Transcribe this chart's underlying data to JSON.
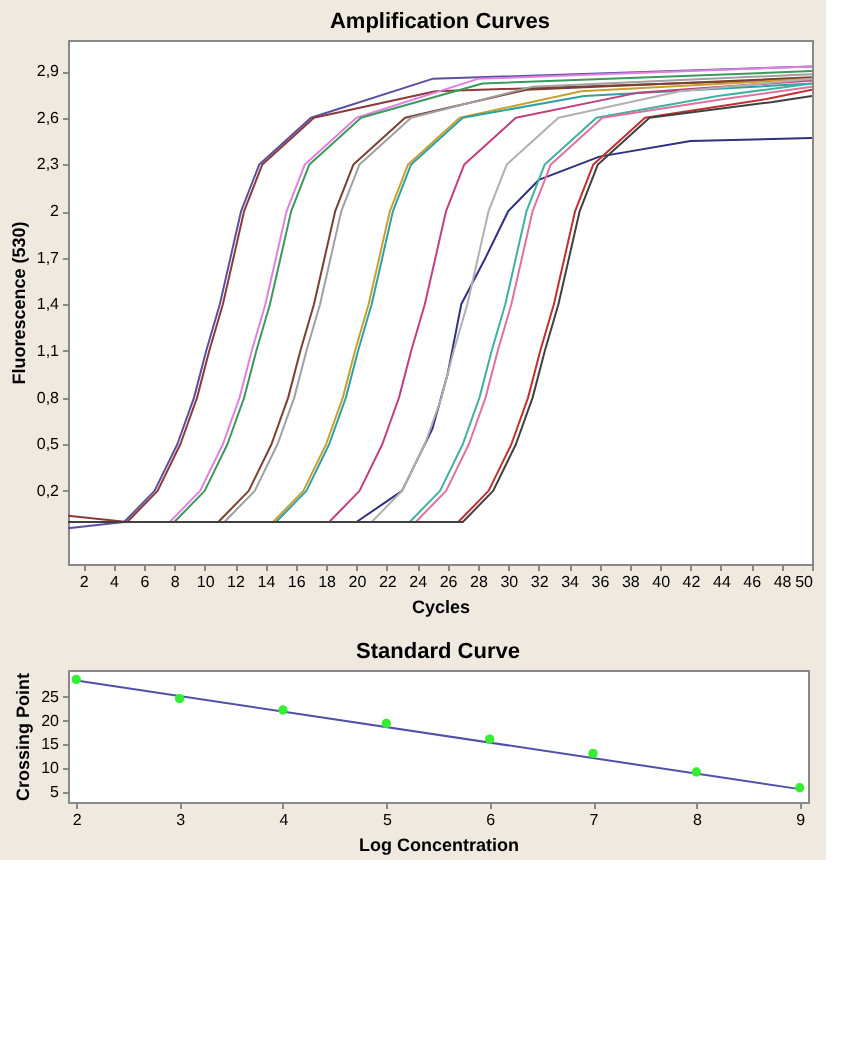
{
  "chart_data": [
    {
      "type": "line",
      "title": "Amplification Curves",
      "xlabel": "Cycles",
      "ylabel": "Fluorescence (530)",
      "grid": false,
      "legend": false,
      "xlim": [
        1,
        50
      ],
      "ylim": [
        -0.27,
        3.1
      ],
      "xticks": [
        2,
        4,
        6,
        8,
        10,
        12,
        14,
        16,
        18,
        20,
        22,
        24,
        26,
        28,
        30,
        32,
        34,
        36,
        38,
        40,
        42,
        44,
        46,
        48,
        50
      ],
      "yticks": [
        {
          "value": 0.2,
          "label": "0,2"
        },
        {
          "value": 0.5,
          "label": "0,5"
        },
        {
          "value": 0.8,
          "label": "0,8"
        },
        {
          "value": 1.1,
          "label": "1,1"
        },
        {
          "value": 1.4,
          "label": "1,4"
        },
        {
          "value": 1.7,
          "label": "1,7"
        },
        2,
        {
          "value": 2.3,
          "label": "2,3"
        },
        {
          "value": 2.6,
          "label": "2,6"
        },
        {
          "value": 2.9,
          "label": "2,9"
        }
      ],
      "series": [
        {
          "color": "#5a4fa0",
          "x": [
            1,
            4.7,
            6.7,
            8.2,
            9.3,
            10.1,
            11,
            11.7,
            12.4,
            13.6,
            17,
            25,
            50
          ],
          "values": [
            -0.04,
            0,
            0.2,
            0.5,
            0.8,
            1.1,
            1.4,
            1.7,
            2.0,
            2.3,
            2.6,
            2.85,
            2.93
          ]
        },
        {
          "color": "#8b3a3a",
          "x": [
            1,
            4.9,
            6.9,
            8.4,
            9.5,
            10.3,
            11.2,
            11.9,
            12.6,
            13.8,
            17.2,
            25.2,
            50
          ],
          "values": [
            0.04,
            0,
            0.2,
            0.5,
            0.8,
            1.1,
            1.4,
            1.7,
            2.0,
            2.3,
            2.6,
            2.77,
            2.85
          ]
        },
        {
          "color": "#e080e0",
          "x": [
            1,
            7.7,
            9.7,
            11.2,
            12.3,
            13.1,
            14,
            14.7,
            15.4,
            16.6,
            20,
            28,
            50
          ],
          "values": [
            0,
            0,
            0.2,
            0.5,
            0.8,
            1.1,
            1.4,
            1.7,
            2.0,
            2.3,
            2.6,
            2.85,
            2.93
          ]
        },
        {
          "color": "#3a9a5a",
          "x": [
            1,
            8,
            10,
            11.5,
            12.6,
            13.4,
            14.3,
            15,
            15.7,
            16.9,
            20.3,
            28.3,
            50
          ],
          "values": [
            0,
            0,
            0.2,
            0.5,
            0.8,
            1.1,
            1.4,
            1.7,
            2.0,
            2.3,
            2.6,
            2.82,
            2.9
          ]
        },
        {
          "color": "#7a4030",
          "x": [
            1,
            10.9,
            12.9,
            14.4,
            15.5,
            16.3,
            17.2,
            17.9,
            18.6,
            19.8,
            23.2,
            31.2,
            50
          ],
          "values": [
            0,
            0,
            0.2,
            0.5,
            0.8,
            1.1,
            1.4,
            1.7,
            2.0,
            2.3,
            2.6,
            2.78,
            2.86
          ]
        },
        {
          "color": "#a0a0a0",
          "x": [
            1,
            11.3,
            13.3,
            14.8,
            15.9,
            16.7,
            17.6,
            18.3,
            19,
            20.2,
            23.6,
            31.6,
            50
          ],
          "values": [
            0,
            0,
            0.2,
            0.5,
            0.8,
            1.1,
            1.4,
            1.7,
            2.0,
            2.3,
            2.6,
            2.8,
            2.88
          ]
        },
        {
          "color": "#c8a030",
          "x": [
            1,
            14.5,
            16.5,
            18,
            19.1,
            19.9,
            20.8,
            21.5,
            22.2,
            23.4,
            26.8,
            34.8,
            50
          ],
          "values": [
            0,
            0,
            0.2,
            0.5,
            0.8,
            1.1,
            1.4,
            1.7,
            2.0,
            2.3,
            2.6,
            2.77,
            2.85
          ]
        },
        {
          "color": "#30a0a0",
          "x": [
            1,
            14.7,
            16.7,
            18.2,
            19.3,
            20.1,
            21,
            21.7,
            22.4,
            23.6,
            27,
            35,
            50
          ],
          "values": [
            0,
            0,
            0.2,
            0.5,
            0.8,
            1.1,
            1.4,
            1.7,
            2.0,
            2.3,
            2.6,
            2.74,
            2.82
          ]
        },
        {
          "color": "#c04080",
          "x": [
            1,
            18.2,
            20.2,
            21.7,
            22.8,
            23.6,
            24.5,
            25.2,
            25.9,
            27.1,
            30.5,
            38.5,
            50
          ],
          "values": [
            0,
            0,
            0.2,
            0.5,
            0.8,
            1.1,
            1.4,
            1.7,
            2.0,
            2.3,
            2.6,
            2.76,
            2.84
          ]
        },
        {
          "color": "#303080",
          "x": [
            1,
            20,
            23,
            25,
            26,
            26.9,
            28.5,
            30,
            32,
            36,
            42,
            50
          ],
          "values": [
            0,
            0,
            0.2,
            0.6,
            0.95,
            1.4,
            1.7,
            2.0,
            2.2,
            2.35,
            2.45,
            2.47
          ]
        },
        {
          "color": "#b0b0b0",
          "x": [
            1,
            21,
            23,
            24.5,
            25.6,
            26.4,
            27.3,
            28,
            28.7,
            29.9,
            33.3,
            41.3,
            50
          ],
          "values": [
            0,
            0,
            0.2,
            0.5,
            0.8,
            1.1,
            1.4,
            1.7,
            2.0,
            2.3,
            2.6,
            2.77,
            2.85
          ]
        },
        {
          "color": "#40b0a0",
          "x": [
            1,
            23.5,
            25.5,
            27,
            28.1,
            28.9,
            29.8,
            30.5,
            31.2,
            32.4,
            35.8,
            43.8,
            50
          ],
          "values": [
            0,
            0,
            0.2,
            0.5,
            0.8,
            1.1,
            1.4,
            1.7,
            2.0,
            2.3,
            2.6,
            2.74,
            2.82
          ]
        },
        {
          "color": "#e070a0",
          "x": [
            1,
            23.9,
            25.9,
            27.4,
            28.5,
            29.3,
            30.2,
            30.9,
            31.6,
            32.8,
            36.2,
            44.2,
            50
          ],
          "values": [
            0,
            0,
            0.2,
            0.5,
            0.8,
            1.1,
            1.4,
            1.7,
            2.0,
            2.3,
            2.6,
            2.72,
            2.8
          ]
        },
        {
          "color": "#c03030",
          "x": [
            1,
            26.7,
            28.7,
            30.2,
            31.3,
            32.1,
            33,
            33.7,
            34.4,
            35.6,
            39,
            47,
            50
          ],
          "values": [
            0,
            0,
            0.2,
            0.5,
            0.8,
            1.1,
            1.4,
            1.7,
            2.0,
            2.3,
            2.6,
            2.72,
            2.78
          ]
        },
        {
          "color": "#404040",
          "x": [
            1,
            27,
            29,
            30.5,
            31.6,
            32.4,
            33.3,
            34,
            34.7,
            35.9,
            39.3,
            47.3,
            50
          ],
          "values": [
            0,
            0,
            0.2,
            0.5,
            0.8,
            1.1,
            1.4,
            1.7,
            2.0,
            2.3,
            2.6,
            2.7,
            2.74
          ]
        }
      ]
    },
    {
      "type": "scatter",
      "title": "Standard Curve",
      "xlabel": "Log Concentration",
      "ylabel": "Crossing Point",
      "grid": false,
      "legend": false,
      "xlim": [
        1.92,
        9.08
      ],
      "ylim": [
        2.9,
        30.6
      ],
      "xticks": [
        2,
        3,
        4,
        5,
        6,
        7,
        8,
        9
      ],
      "yticks": [
        5,
        10,
        15,
        20,
        25
      ],
      "series": [
        {
          "type": "line",
          "color": "#5050a8",
          "x": [
            2,
            9
          ],
          "values": [
            28.4,
            5.6
          ]
        },
        {
          "type": "scatter",
          "marker": "circle",
          "color": "#33ee33",
          "x": [
            2,
            3,
            4,
            5,
            6,
            7,
            8,
            9
          ],
          "values": [
            28.6,
            24.6,
            22.2,
            19.4,
            16.1,
            13.1,
            9.2,
            5.9
          ]
        }
      ]
    }
  ]
}
